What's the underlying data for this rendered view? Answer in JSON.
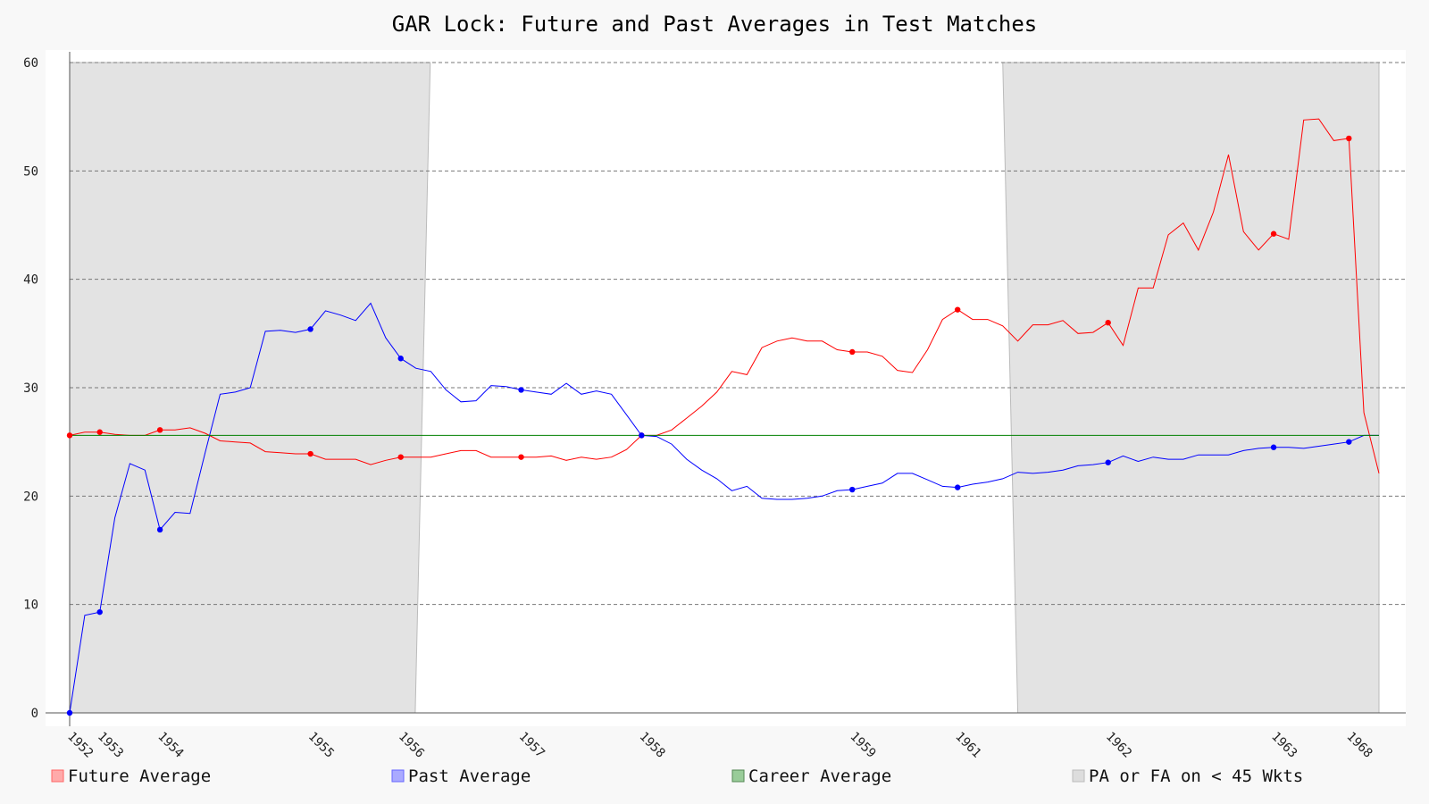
{
  "chart_data": {
    "type": "line",
    "title": "GAR Lock: Future and Past Averages in Test Matches",
    "xlabel": "",
    "ylabel": "",
    "ylim": [
      0,
      60
    ],
    "yticks": [
      0,
      10,
      20,
      30,
      40,
      50,
      60
    ],
    "grid": "horizontal dashed",
    "legend_position": "bottom",
    "x_index_range": [
      1,
      88
    ],
    "x_tick_labels": [
      {
        "index": 1,
        "label": "1952"
      },
      {
        "index": 3,
        "label": "1953"
      },
      {
        "index": 7,
        "label": "1954"
      },
      {
        "index": 17,
        "label": "1955"
      },
      {
        "index": 23,
        "label": "1956"
      },
      {
        "index": 31,
        "label": "1957"
      },
      {
        "index": 39,
        "label": "1958"
      },
      {
        "index": 53,
        "label": "1959"
      },
      {
        "index": 60,
        "label": "1961"
      },
      {
        "index": 70,
        "label": "1962"
      },
      {
        "index": 81,
        "label": "1963"
      },
      {
        "index": 86,
        "label": "1968"
      }
    ],
    "series": [
      {
        "name": "Future Average",
        "color": "#ff0000",
        "x": [
          1,
          2,
          3,
          4,
          5,
          6,
          7,
          8,
          9,
          10,
          11,
          12,
          13,
          14,
          15,
          16,
          17,
          18,
          19,
          20,
          21,
          22,
          23,
          24,
          25,
          26,
          27,
          28,
          29,
          30,
          31,
          32,
          33,
          34,
          35,
          36,
          37,
          38,
          39,
          40,
          41,
          42,
          43,
          44,
          45,
          46,
          47,
          48,
          49,
          50,
          51,
          52,
          53,
          54,
          55,
          56,
          57,
          58,
          59,
          60,
          61,
          62,
          63,
          64,
          65,
          66,
          67,
          68,
          69,
          70,
          71,
          72,
          73,
          74,
          75,
          76,
          77,
          78,
          79,
          80,
          81,
          82,
          83,
          84,
          85,
          86,
          87,
          88
        ],
        "values": [
          25.6,
          25.9,
          25.9,
          25.7,
          25.6,
          25.6,
          26.1,
          26.1,
          26.3,
          25.8,
          25.1,
          25.0,
          24.9,
          24.1,
          24.0,
          23.9,
          23.9,
          23.4,
          23.4,
          23.4,
          22.9,
          23.3,
          23.6,
          23.6,
          23.6,
          23.9,
          24.2,
          24.2,
          23.6,
          23.6,
          23.6,
          23.6,
          23.7,
          23.3,
          23.6,
          23.4,
          23.6,
          24.3,
          25.6,
          25.6,
          26.1,
          27.2,
          28.3,
          29.6,
          31.5,
          31.2,
          33.7,
          34.3,
          34.6,
          34.3,
          34.3,
          33.5,
          33.3,
          33.3,
          32.9,
          31.6,
          31.4,
          33.5,
          36.3,
          37.2,
          36.3,
          36.3,
          35.7,
          34.3,
          35.8,
          35.8,
          36.2,
          35.0,
          35.1,
          36.0,
          33.9,
          39.2,
          39.2,
          44.1,
          45.2,
          42.7,
          46.2,
          51.5,
          44.4,
          42.7,
          44.2,
          43.7,
          54.7,
          54.8,
          52.8,
          53.0,
          27.7,
          22.1
        ],
        "markers_at": [
          1,
          3,
          7,
          17,
          23,
          31,
          39,
          53,
          60,
          70,
          81,
          86
        ]
      },
      {
        "name": "Past Average",
        "color": "#0000ff",
        "x": [
          1,
          2,
          3,
          4,
          5,
          6,
          7,
          8,
          9,
          10,
          11,
          12,
          13,
          14,
          15,
          16,
          17,
          18,
          19,
          20,
          21,
          22,
          23,
          24,
          25,
          26,
          27,
          28,
          29,
          30,
          31,
          32,
          33,
          34,
          35,
          36,
          37,
          38,
          39,
          40,
          41,
          42,
          43,
          44,
          45,
          46,
          47,
          48,
          49,
          50,
          51,
          52,
          53,
          54,
          55,
          56,
          57,
          58,
          59,
          60,
          61,
          62,
          63,
          64,
          65,
          66,
          67,
          68,
          69,
          70,
          71,
          72,
          73,
          74,
          75,
          76,
          77,
          78,
          79,
          80,
          81,
          82,
          83,
          84,
          85,
          86,
          87,
          88
        ],
        "values": [
          0.0,
          9.0,
          9.3,
          18.0,
          23.0,
          22.4,
          16.9,
          18.5,
          18.4,
          24.0,
          29.4,
          29.6,
          30.0,
          35.2,
          35.3,
          35.1,
          35.4,
          37.1,
          36.7,
          36.2,
          37.8,
          34.6,
          32.7,
          31.8,
          31.5,
          29.8,
          28.7,
          28.8,
          30.2,
          30.1,
          29.8,
          29.6,
          29.4,
          30.4,
          29.4,
          29.7,
          29.4,
          27.5,
          25.6,
          25.5,
          24.8,
          23.4,
          22.4,
          21.6,
          20.5,
          20.9,
          19.8,
          19.7,
          19.7,
          19.8,
          20.0,
          20.5,
          20.6,
          20.9,
          21.2,
          22.1,
          22.1,
          21.5,
          20.9,
          20.8,
          21.1,
          21.3,
          21.6,
          22.2,
          22.1,
          22.2,
          22.4,
          22.8,
          22.9,
          23.1,
          23.7,
          23.2,
          23.6,
          23.4,
          23.4,
          23.8,
          23.8,
          23.8,
          24.2,
          24.4,
          24.5,
          24.5,
          24.4,
          24.6,
          24.8,
          25.0,
          25.6,
          25.6
        ],
        "markers_at": [
          1,
          3,
          7,
          17,
          23,
          31,
          39,
          53,
          60,
          70,
          81,
          86
        ]
      },
      {
        "name": "Career Average",
        "color": "#008000",
        "x": [
          1,
          88
        ],
        "values": [
          25.6,
          25.6
        ]
      }
    ],
    "shaded_regions": {
      "name": "PA or FA on < 45 Wkts",
      "regions": [
        {
          "x_start_bottom": 1,
          "x_end_bottom": 23.96,
          "x_start_top": 1,
          "x_end_top": 24.96
        },
        {
          "x_start_bottom": 64.0,
          "x_end_bottom": 88,
          "x_start_top": 63.0,
          "x_end_top": 88
        }
      ]
    },
    "legend": [
      {
        "label": "Future Average",
        "fill": "#ffaaaa",
        "stroke": "#ff6666"
      },
      {
        "label": "Past Average",
        "fill": "#aaaaff",
        "stroke": "#6666ff"
      },
      {
        "label": "Career Average",
        "fill": "#99cc99",
        "stroke": "#558855"
      },
      {
        "label": "PA or FA on < 45 Wkts",
        "fill": "#dddddd",
        "stroke": "#bbbbbb"
      }
    ]
  }
}
